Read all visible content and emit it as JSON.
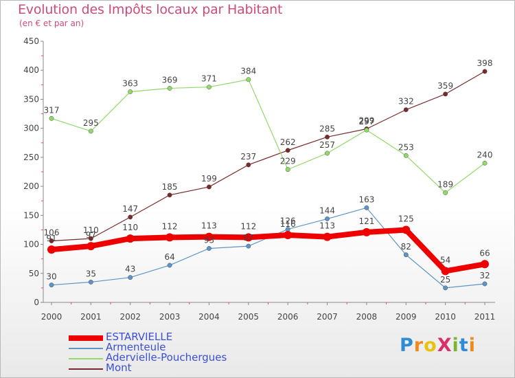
{
  "header": {
    "title": "Evolution des Impôts locaux par Habitant",
    "subtitle": "(en € et par an)"
  },
  "logo": {
    "text": "ProXiti",
    "colors": [
      "#2e8bd6",
      "#f08a1c",
      "#e8c20f",
      "#d9306b",
      "#7ab72e",
      "#2e8bd6",
      "#f08a1c"
    ]
  },
  "chart_data": {
    "type": "line",
    "x": [
      "2000",
      "2001",
      "2002",
      "2003",
      "2004",
      "2005",
      "2006",
      "2007",
      "2008",
      "2009",
      "2010",
      "2011"
    ],
    "ylim": [
      0,
      450
    ],
    "yticks": [
      0,
      50,
      100,
      150,
      200,
      250,
      300,
      350,
      400,
      450
    ],
    "grid": false,
    "legend_position": "bottom-left",
    "series": [
      {
        "name": "ESTARVIELLE",
        "color": "#ee0000",
        "width": 8,
        "values": [
          91,
          97,
          110,
          112,
          113,
          112,
          116,
          113,
          121,
          125,
          54,
          66
        ]
      },
      {
        "name": "Armenteule",
        "color": "#5d95c7",
        "width": 1.2,
        "values": [
          30,
          35,
          43,
          64,
          93,
          97,
          126,
          144,
          163,
          82,
          25,
          32
        ]
      },
      {
        "name": "Adervielle-Pouchergues",
        "color": "#93d86a",
        "width": 1.2,
        "values": [
          317,
          295,
          363,
          369,
          371,
          384,
          229,
          257,
          297,
          253,
          189,
          240
        ]
      },
      {
        "name": "Mont",
        "color": "#7a2a2a",
        "width": 1.2,
        "values": [
          106,
          110,
          147,
          185,
          199,
          237,
          262,
          285,
          299,
          332,
          359,
          398
        ]
      }
    ]
  }
}
